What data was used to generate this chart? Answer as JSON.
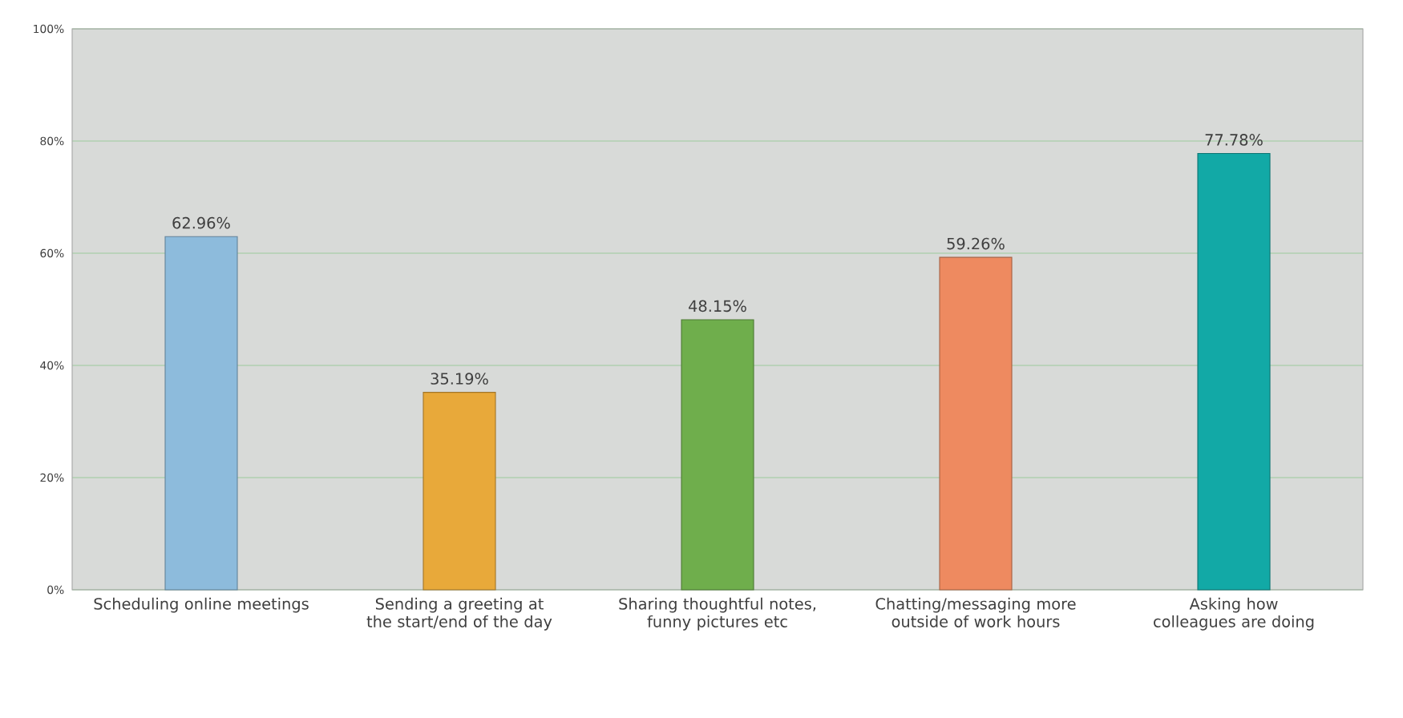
{
  "chart_data": {
    "type": "bar",
    "categories": [
      "Scheduling online meetings",
      "Sending a greeting at the start/end of the day",
      "Sharing thoughtful notes, funny pictures etc",
      "Chatting/messaging more outside of work hours",
      "Asking how colleagues are doing"
    ],
    "values": [
      62.96,
      35.19,
      48.15,
      59.26,
      77.78
    ],
    "value_labels": [
      "62.96%",
      "35.19%",
      "48.15%",
      "59.26%",
      "77.78%"
    ],
    "colors": [
      "#8dbbdc",
      "#e8a93a",
      "#6fae4c",
      "#ee8a60",
      "#12a9a6"
    ],
    "ylim": [
      0,
      100
    ],
    "yticks": [
      {
        "value": 0,
        "label": "0%"
      },
      {
        "value": 20,
        "label": "20%"
      },
      {
        "value": 40,
        "label": "40%"
      },
      {
        "value": 60,
        "label": "60%"
      },
      {
        "value": 80,
        "label": "80%"
      },
      {
        "value": 100,
        "label": "100%"
      }
    ],
    "grid": "y"
  }
}
